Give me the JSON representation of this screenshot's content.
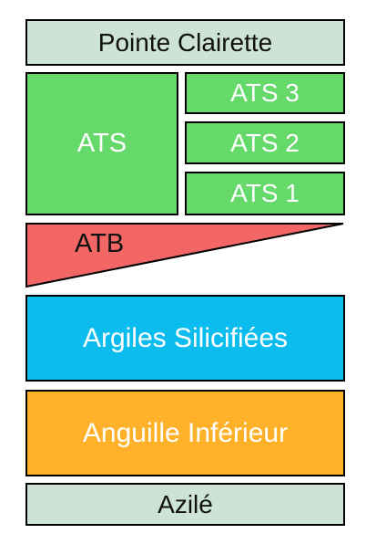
{
  "colors": {
    "cap": "#cde3d6",
    "green": "#66d96b",
    "red": "#f26666",
    "blue": "#0bbdee",
    "orange": "#ffb12a"
  },
  "layers": {
    "top": "Pointe Clairette",
    "ats": "ATS",
    "ats3": "ATS 3",
    "ats2": "ATS 2",
    "ats1": "ATS 1",
    "atb": "ATB",
    "argiles": "Argiles Silicifiées",
    "anguille": "Anguille Inférieur",
    "bottom": "Azilé"
  }
}
